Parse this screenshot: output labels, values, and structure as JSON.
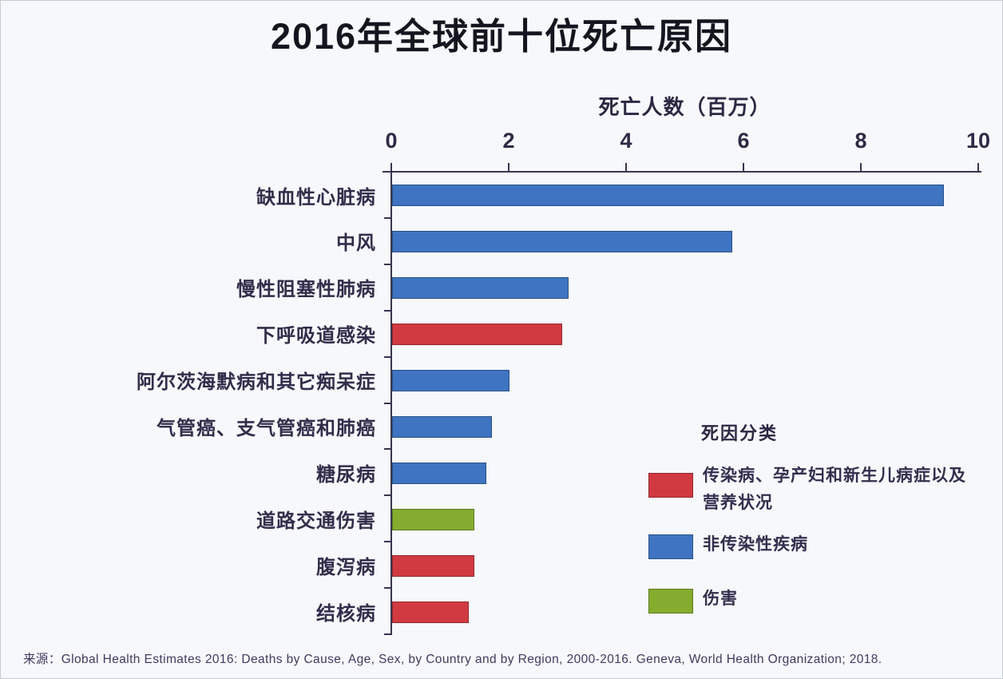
{
  "title": "2016年全球前十位死亡原因",
  "source_note": "来源：Global Health Estimates 2016: Deaths by Cause, Age, Sex, by Country and by Region, 2000-2016. Geneva, World Health Organization; 2018.",
  "chart_data": {
    "type": "bar",
    "orientation": "horizontal",
    "title": "2016年全球前十位死亡原因",
    "axis_title": "死亡人数（百万）",
    "xlim": [
      0,
      10
    ],
    "x_ticks": [
      0,
      2,
      4,
      6,
      8,
      10
    ],
    "grid": false,
    "categories": [
      "缺血性心脏病",
      "中风",
      "慢性阻塞性肺病",
      "下呼吸道感染",
      "阿尔茨海默病和其它痴呆症",
      "气管癌、支气管癌和肺癌",
      "糖尿病",
      "道路交通伤害",
      "腹泻病",
      "结核病"
    ],
    "values": [
      9.4,
      5.8,
      3.0,
      2.9,
      2.0,
      1.7,
      1.6,
      1.4,
      1.4,
      1.3
    ],
    "series_types": [
      "noncommunicable",
      "noncommunicable",
      "noncommunicable",
      "communicable",
      "noncommunicable",
      "noncommunicable",
      "noncommunicable",
      "injury",
      "communicable",
      "communicable"
    ],
    "colors": {
      "communicable": "#d23a41",
      "noncommunicable": "#3e74c1",
      "injury": "#85ac2e"
    },
    "legend": {
      "title": "死因分类",
      "position": "right-middle",
      "entries": [
        {
          "type": "communicable",
          "color": "#d23a41",
          "label": "传染病、孕产妇和新生儿病症以及营养状况",
          "label_lines": [
            "传染病、孕产妇和新生儿病症以及",
            "营养状况"
          ]
        },
        {
          "type": "noncommunicable",
          "color": "#3e74c1",
          "label": "非传染性疾病",
          "label_lines": [
            "非传染性疾病"
          ]
        },
        {
          "type": "injury",
          "color": "#85ac2e",
          "label": "伤害",
          "label_lines": [
            "伤害"
          ]
        }
      ]
    }
  }
}
